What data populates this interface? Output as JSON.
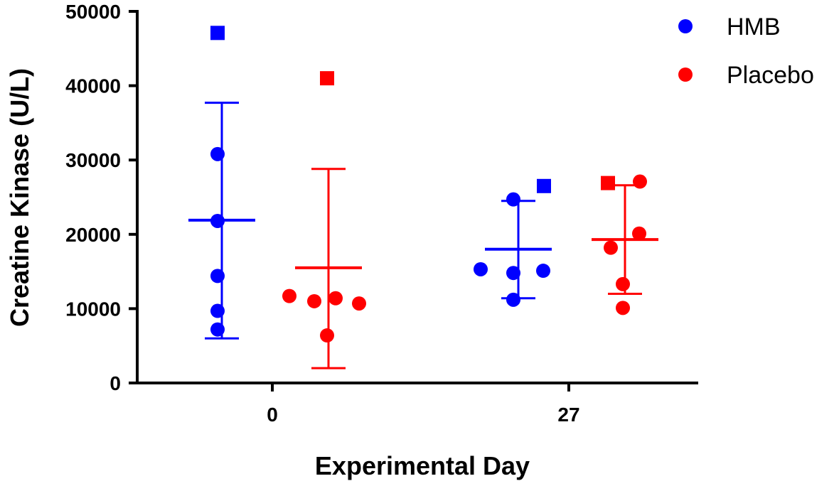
{
  "chart_data": {
    "type": "scatter",
    "xlabel": "Experimental Day",
    "ylabel": "Creatine Kinase (U/L)",
    "ylim": [
      0,
      50000
    ],
    "yticks": [
      "0",
      "10000",
      "20000",
      "30000",
      "40000",
      "50000"
    ],
    "categories": [
      "0",
      "27"
    ],
    "legend_position": "top-right",
    "series": [
      {
        "name": "HMB",
        "color": "#0000ff",
        "groups": [
          {
            "category": "0",
            "circles": [
              30800,
              21800,
              14400,
              9700,
              7200
            ],
            "squares": [
              47100
            ],
            "mean": 21900,
            "sd_low": 6000,
            "sd_high": 37700
          },
          {
            "category": "27",
            "circles": [
              24700,
              15300,
              14800,
              15100,
              11200
            ],
            "squares": [
              26500
            ],
            "mean": 18000,
            "sd_low": 11400,
            "sd_high": 24500
          }
        ]
      },
      {
        "name": "Placebo",
        "color": "#ff0000",
        "groups": [
          {
            "category": "0",
            "circles": [
              11700,
              11000,
              11400,
              10700,
              6400
            ],
            "squares": [
              41000
            ],
            "mean": 15500,
            "sd_low": 2000,
            "sd_high": 28800
          },
          {
            "category": "27",
            "circles": [
              27100,
              20100,
              18200,
              13300,
              10100
            ],
            "squares": [
              26900
            ],
            "mean": 19300,
            "sd_low": 12000,
            "sd_high": 26600
          }
        ]
      }
    ]
  }
}
